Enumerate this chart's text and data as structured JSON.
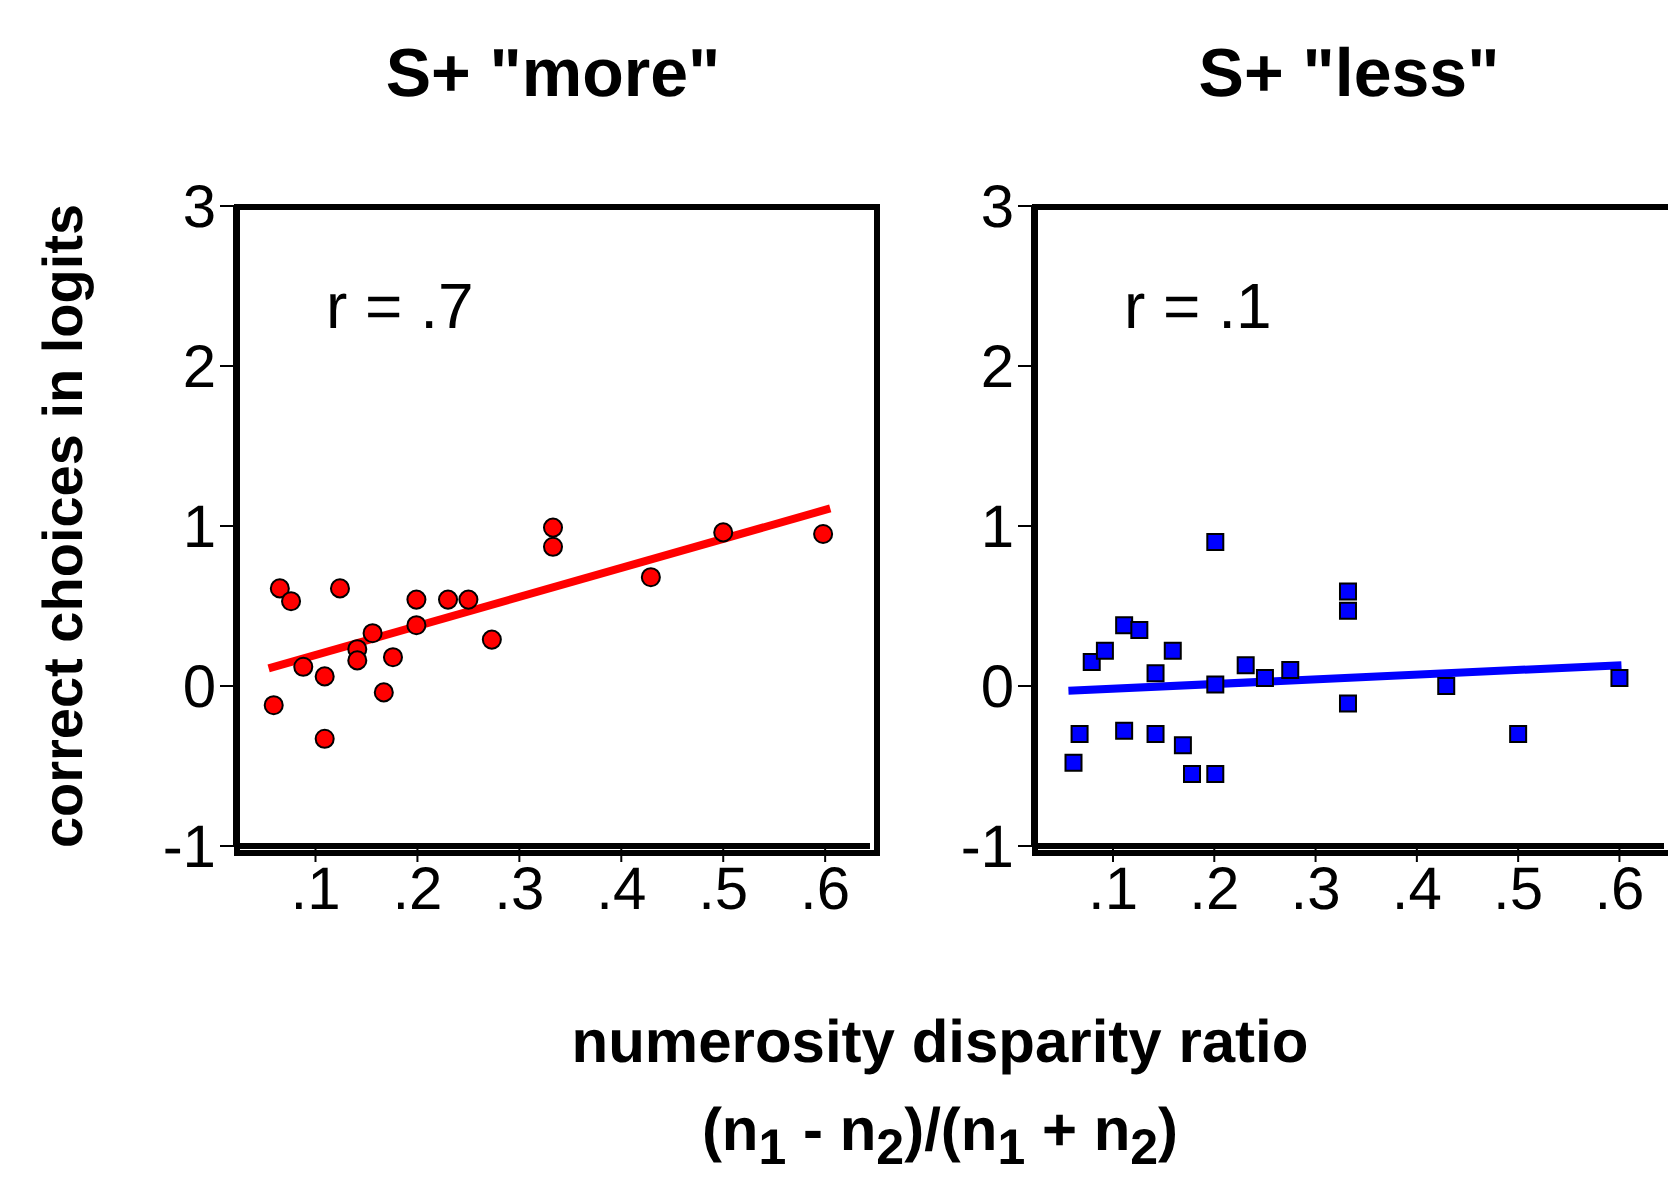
{
  "chart_data": [
    {
      "type": "scatter",
      "title": "S+ \"more\"",
      "ylabel": "correct choices in logits",
      "xlabel": "numerosity disparity ratio\n(n$_{1}$ - n$_{2}$)/(n$_{1}$ + n$_{2}$)",
      "annotations": [
        "r = .7"
      ],
      "xlim": [
        0.022,
        0.644
      ],
      "ylim": [
        -1,
        3
      ],
      "xticks": [
        {
          "value": 0.1,
          "label": ".1"
        },
        {
          "value": 0.2,
          "label": ".2"
        },
        {
          "value": 0.3,
          "label": ".3"
        },
        {
          "value": 0.4,
          "label": ".4"
        },
        {
          "value": 0.5,
          "label": ".5"
        },
        {
          "value": 0.6,
          "label": ".6"
        }
      ],
      "yticks": [
        -1,
        0,
        1,
        2,
        3
      ],
      "series": [
        {
          "marker": "circle",
          "color": "#ff0000",
          "x": [
            0.059,
            0.065,
            0.076,
            0.088,
            0.109,
            0.109,
            0.124,
            0.141,
            0.141,
            0.156,
            0.167,
            0.176,
            0.199,
            0.199,
            0.23,
            0.25,
            0.273,
            0.333,
            0.333,
            0.429,
            0.5,
            0.598
          ],
          "values": [
            -0.12,
            0.61,
            0.53,
            0.12,
            0.06,
            -0.33,
            0.61,
            0.23,
            0.16,
            0.33,
            -0.04,
            0.18,
            0.54,
            0.38,
            0.54,
            0.54,
            0.29,
            0.99,
            0.87,
            0.68,
            0.96,
            0.95
          ]
        },
        {
          "type": "line",
          "color": "#ff0000",
          "x": [
            0.054,
            0.605
          ],
          "values": [
            0.11,
            1.11
          ]
        }
      ]
    },
    {
      "type": "scatter",
      "title": "S+ \"less\"",
      "annotations": [
        "r = .1"
      ],
      "xlim": [
        0.022,
        0.644
      ],
      "ylim": [
        -1,
        3
      ],
      "xticks": [
        {
          "value": 0.1,
          "label": ".1"
        },
        {
          "value": 0.2,
          "label": ".2"
        },
        {
          "value": 0.3,
          "label": ".3"
        },
        {
          "value": 0.4,
          "label": ".4"
        },
        {
          "value": 0.5,
          "label": ".5"
        },
        {
          "value": 0.6,
          "label": ".6"
        }
      ],
      "yticks": [
        -1,
        0,
        1,
        2,
        3
      ],
      "series": [
        {
          "marker": "square",
          "color": "#0000ff",
          "x": [
            0.061,
            0.067,
            0.079,
            0.092,
            0.111,
            0.126,
            0.111,
            0.142,
            0.142,
            0.159,
            0.169,
            0.178,
            0.201,
            0.201,
            0.201,
            0.231,
            0.25,
            0.275,
            0.332,
            0.332,
            0.332,
            0.429,
            0.5,
            0.6
          ],
          "values": [
            -0.48,
            -0.3,
            0.15,
            0.22,
            0.38,
            0.35,
            -0.28,
            0.08,
            -0.3,
            0.22,
            -0.37,
            -0.55,
            -0.55,
            0.01,
            0.9,
            0.13,
            0.05,
            0.1,
            0.59,
            0.47,
            -0.11,
            0.0,
            -0.3,
            0.05
          ]
        },
        {
          "type": "line",
          "color": "#0000ff",
          "x": [
            0.056,
            0.602
          ],
          "values": [
            -0.03,
            0.13
          ]
        }
      ]
    }
  ]
}
